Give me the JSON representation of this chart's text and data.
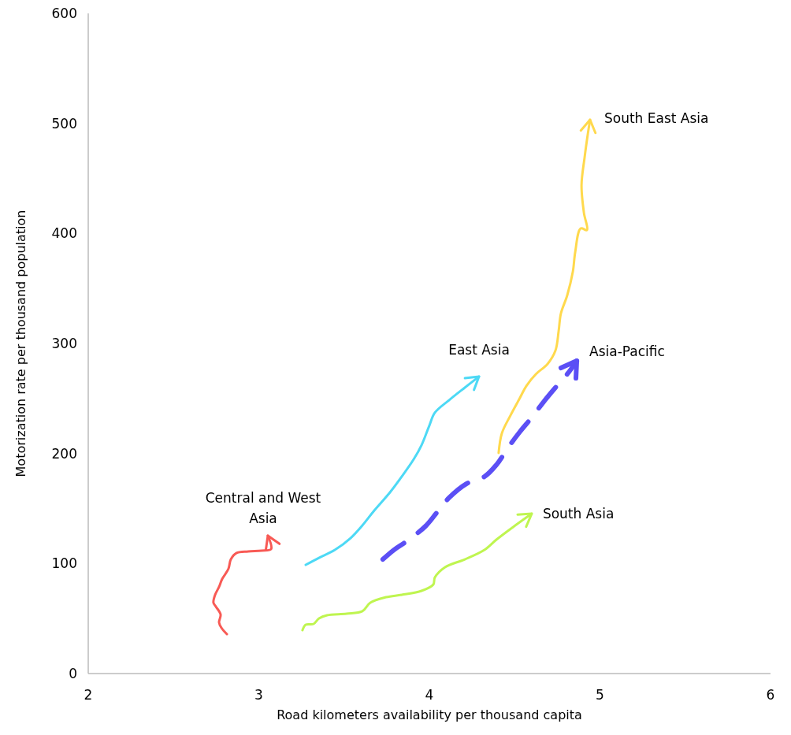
{
  "chart_data": {
    "type": "line",
    "xlabel": "Road kilometers availability per thousand capita",
    "ylabel": "Motorization rate per thousand population",
    "xlim": [
      2,
      6
    ],
    "xticks": [
      2,
      3,
      4,
      5,
      6
    ],
    "ylim": [
      0,
      600
    ],
    "yticks": [
      0,
      100,
      200,
      300,
      400,
      500,
      600
    ],
    "grid": false,
    "marker": "none",
    "series": [
      {
        "name": "Central and West Asia",
        "color": "#f85a55",
        "line_style": "solid",
        "x": [
          2.813,
          2.781,
          2.767,
          2.776,
          2.748,
          2.734,
          2.744,
          2.767,
          2.785,
          2.822,
          2.836,
          2.868,
          2.938,
          3.016,
          3.072,
          3.053
        ],
        "values": [
          35.8,
          41.5,
          46.5,
          53.7,
          60.9,
          64.4,
          71.6,
          78.8,
          85.9,
          95.2,
          103.8,
          109.5,
          111,
          111.7,
          113.1,
          125.3
        ]
      },
      {
        "name": "East Asia",
        "color": "#4dd9f5",
        "line_style": "solid",
        "x": [
          3.275,
          3.353,
          3.446,
          3.538,
          3.607,
          3.677,
          3.769,
          3.838,
          3.908,
          3.954,
          4.0,
          4.032,
          4.115,
          4.208,
          4.291
        ],
        "values": [
          98.8,
          105.2,
          112.4,
          123.1,
          134.6,
          148.2,
          164.7,
          179,
          194.7,
          207.6,
          225.5,
          237,
          248.4,
          259.9,
          269.9
        ]
      },
      {
        "name": "Asia-Pacific",
        "color": "#5b4ff5",
        "line_style": "dashed",
        "x": [
          3.727,
          3.792,
          3.861,
          3.977,
          4.046,
          4.115,
          4.217,
          4.323,
          4.393,
          4.462,
          4.531,
          4.6,
          4.67,
          4.739,
          4.808,
          4.864
        ],
        "values": [
          103.8,
          112.4,
          119.6,
          133.9,
          146.8,
          159.7,
          172.5,
          179,
          189.7,
          205.5,
          219.8,
          232.7,
          247,
          259.9,
          272.1,
          284.2
        ]
      },
      {
        "name": "South East Asia",
        "color": "#ffd94d",
        "line_style": "solid",
        "x": [
          4.406,
          4.425,
          4.476,
          4.531,
          4.568,
          4.624,
          4.693,
          4.739,
          4.758,
          4.771,
          4.808,
          4.841,
          4.855,
          4.887,
          4.924,
          4.906,
          4.892,
          4.91,
          4.929,
          4.942
        ],
        "values": [
          200.5,
          218.4,
          234.8,
          250.6,
          261.3,
          272.1,
          281.4,
          293.5,
          311.4,
          327.2,
          343.7,
          365.1,
          383.1,
          404.5,
          403.1,
          418.8,
          443.9,
          469,
          490.4,
          503.3
        ]
      },
      {
        "name": "South Asia",
        "color": "#bff550",
        "line_style": "solid",
        "x": [
          3.256,
          3.275,
          3.321,
          3.353,
          3.4,
          3.515,
          3.607,
          3.654,
          3.746,
          3.838,
          3.954,
          4.023,
          4.032,
          4.092,
          4.208,
          4.323,
          4.393,
          4.485,
          4.6
        ],
        "values": [
          39.4,
          44.4,
          45.1,
          50.1,
          53,
          54.4,
          56.6,
          64.4,
          69.4,
          71.6,
          75.2,
          80.9,
          87.3,
          96.7,
          103.8,
          112.4,
          121.7,
          132.5,
          145.3
        ]
      }
    ]
  }
}
